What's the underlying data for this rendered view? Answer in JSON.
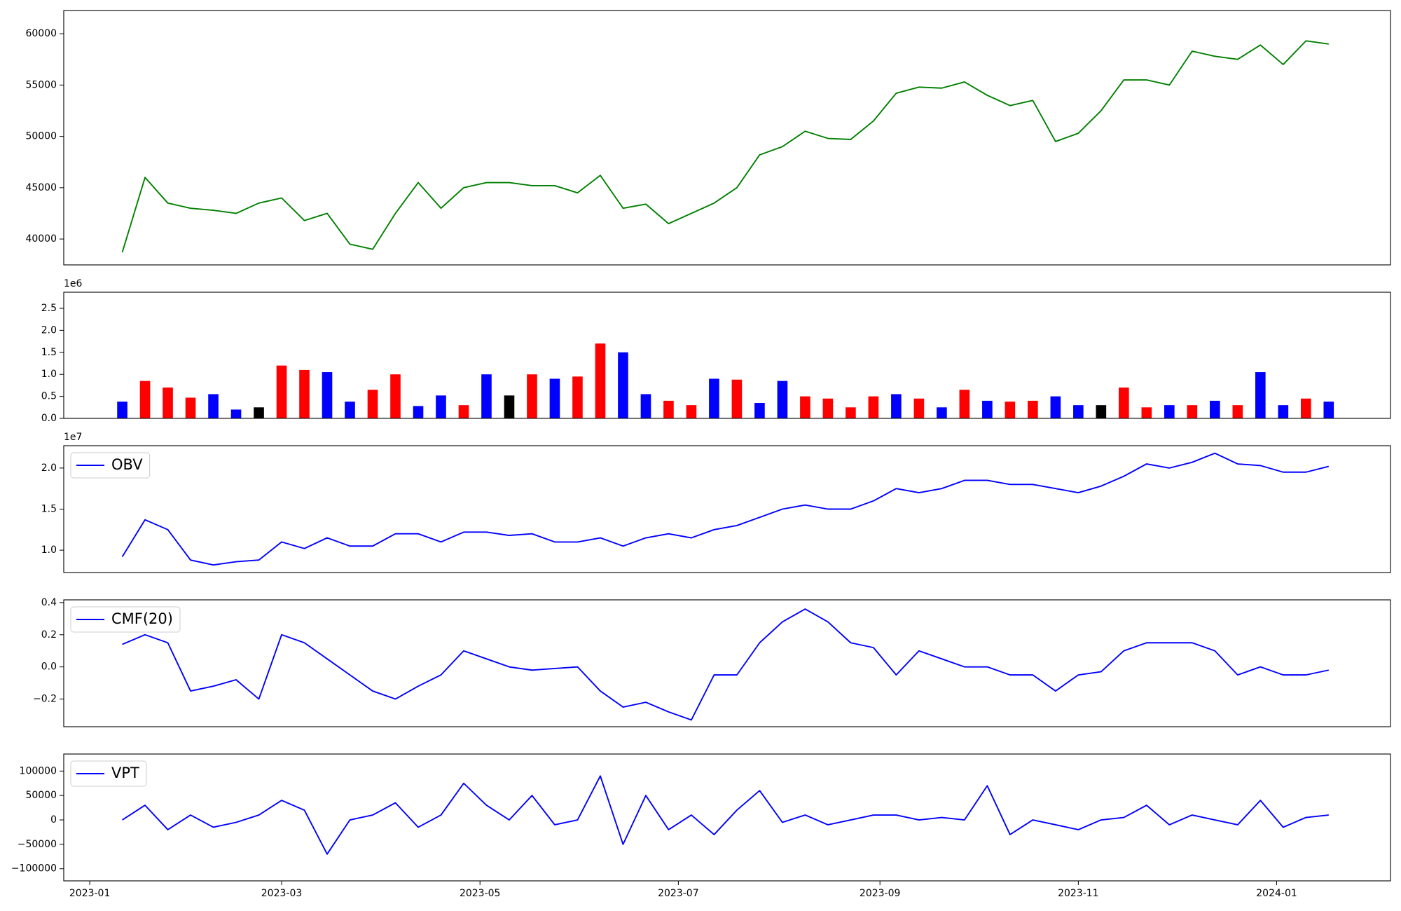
{
  "chart_data": [
    {
      "type": "line",
      "x": [
        10,
        17,
        24,
        31,
        38,
        45,
        52,
        59,
        66,
        73,
        80,
        87,
        94,
        101,
        108,
        115,
        122,
        129,
        136,
        143,
        150,
        157,
        164,
        171,
        178,
        185,
        192,
        199,
        206,
        213,
        220,
        227,
        234,
        241,
        248,
        255,
        262,
        269,
        276,
        283,
        290,
        297,
        304,
        311,
        318,
        325,
        332,
        339,
        346,
        353,
        360,
        367,
        374,
        381
      ],
      "xlim": [
        -8,
        400
      ],
      "ylim": [
        37480,
        62260
      ],
      "yticks": [
        40000,
        45000,
        50000,
        55000,
        60000
      ],
      "series": [
        {
          "color": "#008000",
          "values": [
            38700,
            46000,
            43500,
            43000,
            42800,
            42500,
            43500,
            44000,
            41800,
            42500,
            39500,
            39000,
            42500,
            45500,
            43000,
            45000,
            45500,
            45500,
            45200,
            45200,
            44500,
            46200,
            43000,
            43400,
            41500,
            42500,
            43500,
            45000,
            48200,
            49000,
            50500,
            49800,
            49700,
            51500,
            54200,
            54800,
            54700,
            55300,
            54000,
            53000,
            53500,
            49500,
            50300,
            52500,
            55500,
            55500,
            55000,
            58300,
            57800,
            57500,
            58900,
            57000,
            59300,
            59000
          ]
        }
      ]
    },
    {
      "type": "bar",
      "x": [
        10,
        17,
        24,
        31,
        38,
        45,
        52,
        59,
        66,
        73,
        80,
        87,
        94,
        101,
        108,
        115,
        122,
        129,
        136,
        143,
        150,
        157,
        164,
        171,
        178,
        185,
        192,
        199,
        206,
        213,
        220,
        227,
        234,
        241,
        248,
        255,
        262,
        269,
        276,
        283,
        290,
        297,
        304,
        311,
        318,
        325,
        332,
        339,
        346,
        353,
        360,
        367,
        374,
        381
      ],
      "xlim": [
        -8,
        400
      ],
      "ylim": [
        0,
        2866000
      ],
      "offset_label": "1e6",
      "yticks": [
        {
          "value": 0,
          "label": "0.0"
        },
        {
          "value": 500000,
          "label": "0.5"
        },
        {
          "value": 1000000,
          "label": "1.0"
        },
        {
          "value": 1500000,
          "label": "1.5"
        },
        {
          "value": 2000000,
          "label": "2.0"
        },
        {
          "value": 2500000,
          "label": "2.5"
        }
      ],
      "values": [
        380000,
        850000,
        700000,
        470000,
        550000,
        200000,
        250000,
        1200000,
        1100000,
        1050000,
        380000,
        650000,
        1000000,
        280000,
        520000,
        300000,
        1000000,
        520000,
        1000000,
        900000,
        950000,
        1700000,
        1500000,
        550000,
        400000,
        300000,
        900000,
        880000,
        350000,
        850000,
        500000,
        450000,
        250000,
        500000,
        550000,
        450000,
        250000,
        650000,
        400000,
        380000,
        400000,
        500000,
        300000,
        300000,
        700000,
        250000,
        300000,
        300000,
        400000,
        300000,
        1050000,
        300000,
        450000,
        380000
      ],
      "colors": [
        "blue",
        "red",
        "red",
        "red",
        "blue",
        "blue",
        "black",
        "red",
        "red",
        "blue",
        "blue",
        "red",
        "red",
        "blue",
        "blue",
        "red",
        "blue",
        "black",
        "red",
        "blue",
        "red",
        "red",
        "blue",
        "blue",
        "red",
        "red",
        "blue",
        "red",
        "blue",
        "blue",
        "red",
        "red",
        "red",
        "red",
        "blue",
        "red",
        "blue",
        "red",
        "blue",
        "red",
        "red",
        "blue",
        "blue",
        "black",
        "red",
        "red",
        "blue",
        "red",
        "blue",
        "red",
        "blue",
        "blue",
        "red",
        "blue"
      ]
    },
    {
      "type": "line",
      "x": [
        10,
        17,
        24,
        31,
        38,
        45,
        52,
        59,
        66,
        73,
        80,
        87,
        94,
        101,
        108,
        115,
        122,
        129,
        136,
        143,
        150,
        157,
        164,
        171,
        178,
        185,
        192,
        199,
        206,
        213,
        220,
        227,
        234,
        241,
        248,
        255,
        262,
        269,
        276,
        283,
        290,
        297,
        304,
        311,
        318,
        325,
        332,
        339,
        346,
        353,
        360,
        367,
        374,
        381
      ],
      "xlim": [
        -8,
        400
      ],
      "ylim": [
        7280000,
        22720000
      ],
      "offset_label": "1e7",
      "yticks": [
        {
          "value": 10000000,
          "label": "1.0"
        },
        {
          "value": 15000000,
          "label": "1.5"
        },
        {
          "value": 20000000,
          "label": "2.0"
        }
      ],
      "legend": "upper left",
      "series": [
        {
          "name": "OBV",
          "color": "#0000ff",
          "values": [
            9200000,
            13700000,
            12500000,
            8800000,
            8200000,
            8600000,
            8800000,
            11000000,
            10200000,
            11500000,
            10500000,
            10500000,
            12000000,
            12000000,
            11000000,
            12200000,
            12200000,
            11800000,
            12000000,
            11000000,
            11000000,
            11500000,
            10500000,
            11500000,
            12000000,
            11500000,
            12500000,
            13000000,
            14000000,
            15000000,
            15500000,
            15000000,
            15000000,
            16000000,
            17500000,
            17000000,
            17500000,
            18500000,
            18500000,
            18000000,
            18000000,
            17500000,
            17000000,
            17800000,
            19000000,
            20500000,
            20000000,
            20700000,
            21800000,
            20500000,
            20300000,
            19500000,
            19500000,
            20200000
          ]
        }
      ]
    },
    {
      "type": "line",
      "x": [
        10,
        17,
        24,
        31,
        38,
        45,
        52,
        59,
        66,
        73,
        80,
        87,
        94,
        101,
        108,
        115,
        122,
        129,
        136,
        143,
        150,
        157,
        164,
        171,
        178,
        185,
        192,
        199,
        206,
        213,
        220,
        227,
        234,
        241,
        248,
        255,
        262,
        269,
        276,
        283,
        290,
        297,
        304,
        311,
        318,
        325,
        332,
        339,
        346,
        353,
        360,
        367,
        374,
        381
      ],
      "xlim": [
        -8,
        400
      ],
      "ylim": [
        -0.372,
        0.417
      ],
      "yticks": [
        {
          "value": -0.2,
          "label": "−0.2"
        },
        {
          "value": 0,
          "label": "0.0"
        },
        0.2,
        0.4
      ],
      "legend": "upper left",
      "series": [
        {
          "name": "CMF(20)",
          "color": "#0000ff",
          "values": [
            0.14,
            0.2,
            0.15,
            -0.15,
            -0.12,
            -0.08,
            -0.2,
            0.2,
            0.15,
            0.05,
            -0.05,
            -0.15,
            -0.2,
            -0.12,
            -0.05,
            0.1,
            0.05,
            0,
            -0.02,
            -0.01,
            0,
            -0.15,
            -0.25,
            -0.22,
            -0.28,
            -0.33,
            -0.05,
            -0.05,
            0.15,
            0.28,
            0.36,
            0.28,
            0.15,
            0.12,
            -0.05,
            0.1,
            0.05,
            0,
            0,
            -0.05,
            -0.05,
            -0.15,
            -0.05,
            -0.03,
            0.1,
            0.15,
            0.15,
            0.15,
            0.1,
            -0.05,
            0,
            -0.05,
            -0.05,
            -0.02
          ]
        }
      ]
    },
    {
      "type": "line",
      "x": [
        10,
        17,
        24,
        31,
        38,
        45,
        52,
        59,
        66,
        73,
        80,
        87,
        94,
        101,
        108,
        115,
        122,
        129,
        136,
        143,
        150,
        157,
        164,
        171,
        178,
        185,
        192,
        199,
        206,
        213,
        220,
        227,
        234,
        241,
        248,
        255,
        262,
        269,
        276,
        283,
        290,
        297,
        304,
        311,
        318,
        325,
        332,
        339,
        346,
        353,
        360,
        367,
        374,
        381
      ],
      "xlim": [
        -8,
        400
      ],
      "ylim": [
        -124800,
        134900
      ],
      "yticks": [
        {
          "value": -100000,
          "label": "−100000"
        },
        {
          "value": -50000,
          "label": "−50000"
        },
        0,
        50000,
        100000
      ],
      "xticks": [
        {
          "value": 0,
          "label": "2023-01"
        },
        {
          "value": 59,
          "label": "2023-03"
        },
        {
          "value": 120,
          "label": "2023-05"
        },
        {
          "value": 181,
          "label": "2023-07"
        },
        {
          "value": 243,
          "label": "2023-09"
        },
        {
          "value": 304,
          "label": "2023-11"
        },
        {
          "value": 365,
          "label": "2024-01"
        }
      ],
      "legend": "upper left",
      "series": [
        {
          "name": "VPT",
          "color": "#0000ff",
          "values": [
            0,
            30000,
            -20000,
            10000,
            -15000,
            -5000,
            10000,
            40000,
            20000,
            -70000,
            0,
            10000,
            35000,
            -15000,
            10000,
            75000,
            30000,
            0,
            50000,
            -10000,
            0,
            90000,
            -50000,
            50000,
            -20000,
            10000,
            -30000,
            20000,
            60000,
            -5000,
            10000,
            -10000,
            0,
            10000,
            10000,
            0,
            5000,
            0,
            70000,
            -30000,
            0,
            -10000,
            -20000,
            0,
            5000,
            30000,
            -10000,
            10000,
            0,
            -10000,
            40000,
            -15000,
            5000,
            10000
          ]
        }
      ]
    }
  ]
}
